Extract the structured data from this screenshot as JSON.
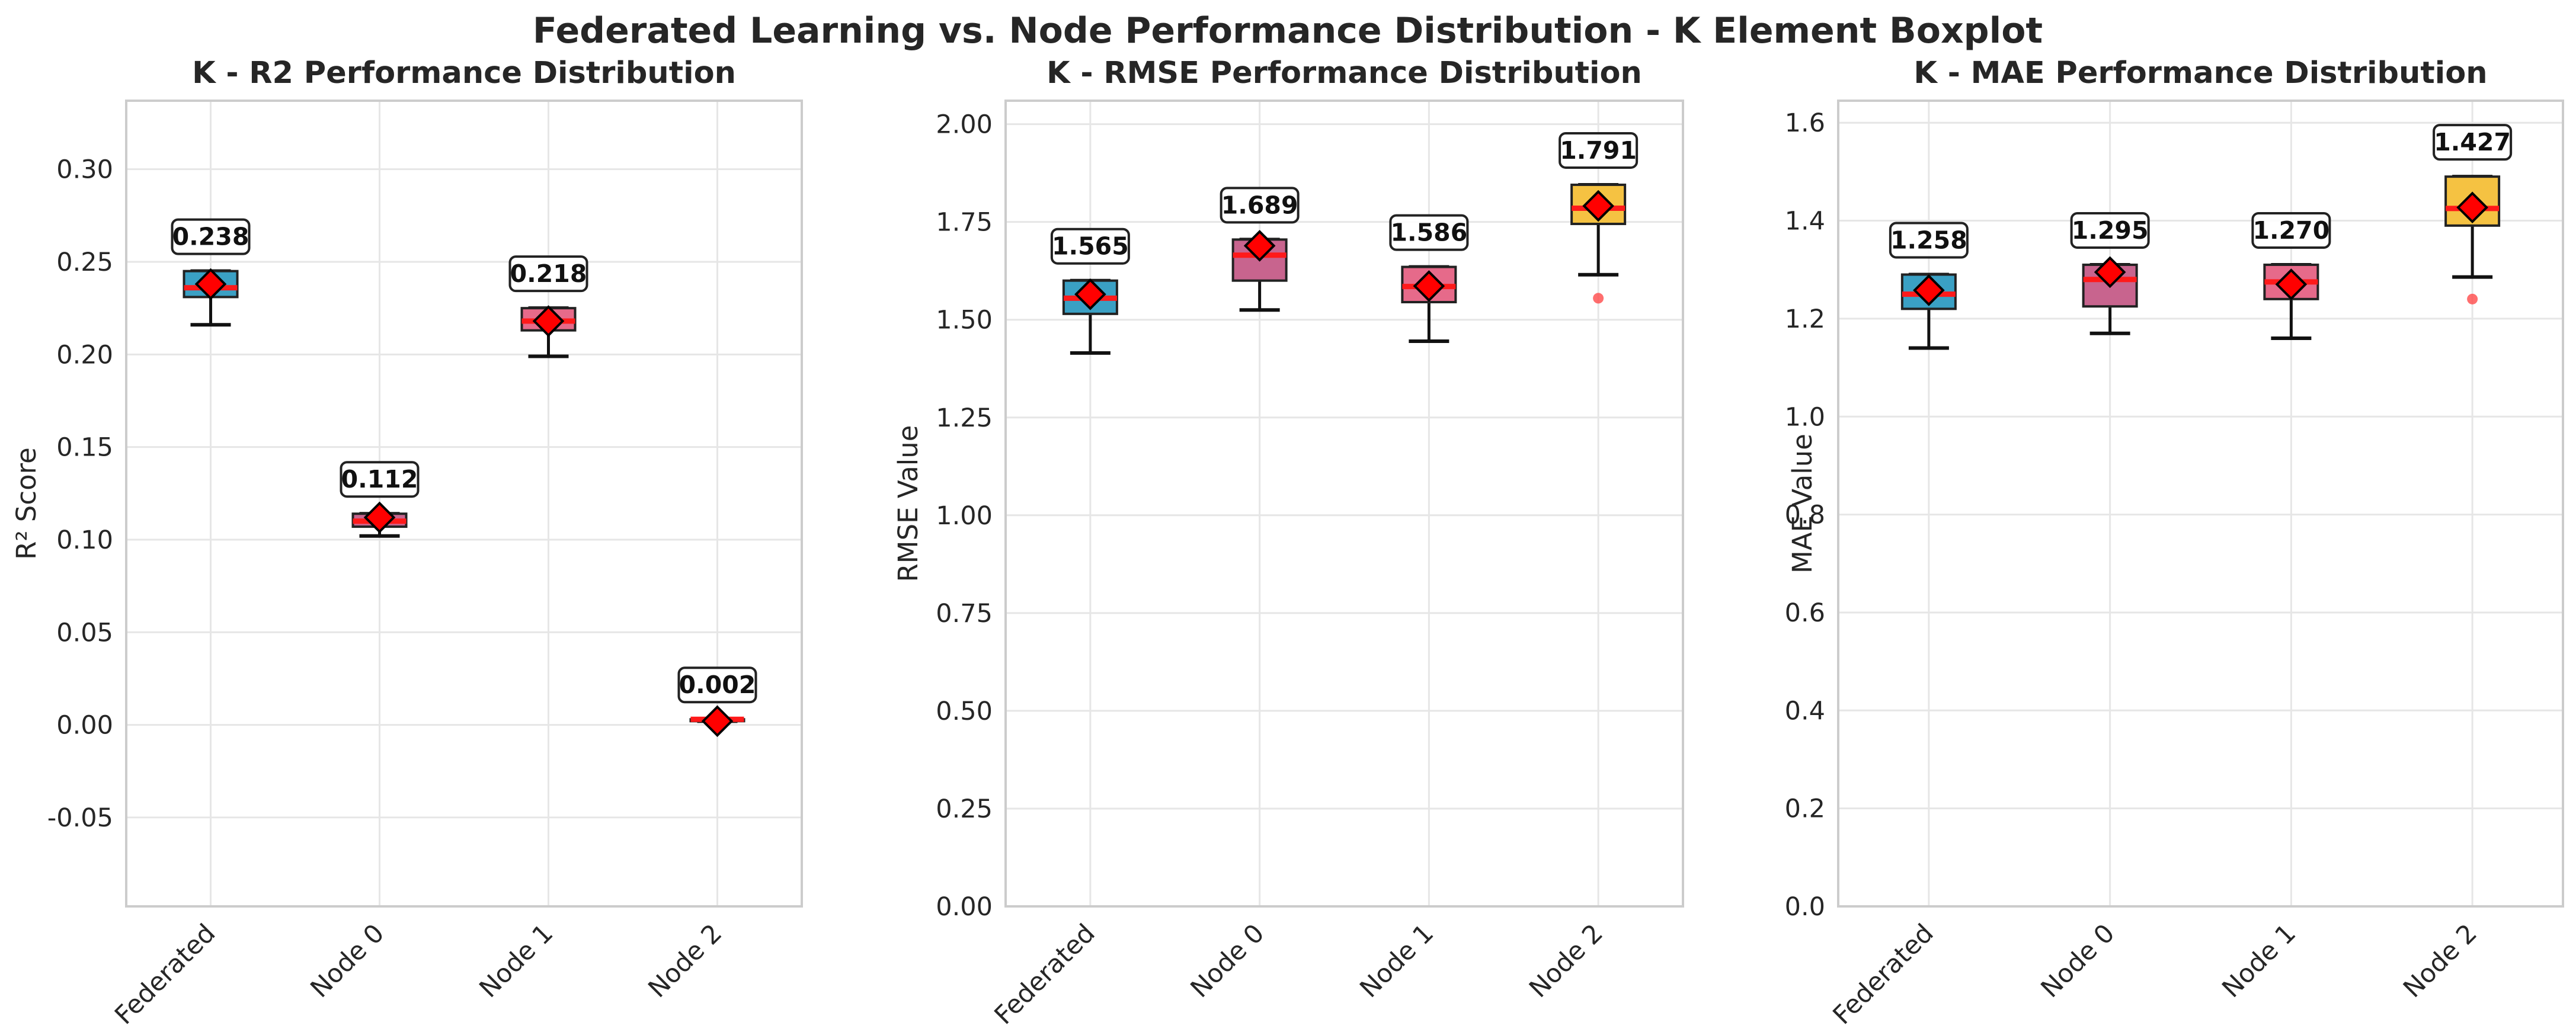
{
  "figure": {
    "title": "Federated Learning vs. Node Performance Distribution - K Element Boxplot"
  },
  "colors": {
    "federated": "#3aa0c4",
    "node0": "#c8648e",
    "node1": "#e66a8a",
    "node2": "#f5c242",
    "median": "#ff1a1a",
    "mean_marker": "#ff0000",
    "outlier": "#ff4a4a",
    "grid": "#e6e6e6",
    "axes": "#cccccc"
  },
  "chart_data": [
    {
      "type": "boxplot",
      "title": "K - R2 Performance Distribution",
      "xlabel": "",
      "ylabel": "R² Score",
      "ylim": [
        -0.098,
        0.337
      ],
      "yticks": [
        -0.05,
        0.0,
        0.05,
        0.1,
        0.15,
        0.2,
        0.25,
        0.3
      ],
      "ytick_labels": [
        "-0.05",
        "0.00",
        "0.05",
        "0.10",
        "0.15",
        "0.20",
        "0.25",
        "0.30"
      ],
      "categories": [
        "Federated",
        "Node 0",
        "Node 1",
        "Node 2"
      ],
      "boxes": [
        {
          "category": "Federated",
          "whislo": 0.216,
          "q1": 0.231,
          "med": 0.236,
          "q3": 0.245,
          "whishi": 0.245,
          "mean": 0.238,
          "label": "0.238",
          "outliers": []
        },
        {
          "category": "Node 0",
          "whislo": 0.102,
          "q1": 0.107,
          "med": 0.11,
          "q3": 0.114,
          "whishi": 0.114,
          "mean": 0.112,
          "label": "0.112",
          "outliers": []
        },
        {
          "category": "Node 1",
          "whislo": 0.199,
          "q1": 0.213,
          "med": 0.218,
          "q3": 0.225,
          "whishi": 0.225,
          "mean": 0.218,
          "label": "0.218",
          "outliers": []
        },
        {
          "category": "Node 2",
          "whislo": 0.002,
          "q1": 0.002,
          "med": 0.003,
          "q3": 0.003,
          "whishi": 0.003,
          "mean": 0.002,
          "label": "0.002",
          "outliers": []
        }
      ]
    },
    {
      "type": "boxplot",
      "title": "K - RMSE Performance Distribution",
      "xlabel": "",
      "ylabel": "RMSE Value",
      "ylim": [
        0.0,
        2.06
      ],
      "yticks": [
        0.0,
        0.25,
        0.5,
        0.75,
        1.0,
        1.25,
        1.5,
        1.75,
        2.0
      ],
      "ytick_labels": [
        "0.00",
        "0.25",
        "0.50",
        "0.75",
        "1.00",
        "1.25",
        "1.50",
        "1.75",
        "2.00"
      ],
      "categories": [
        "Federated",
        "Node 0",
        "Node 1",
        "Node 2"
      ],
      "boxes": [
        {
          "category": "Federated",
          "whislo": 1.415,
          "q1": 1.515,
          "med": 1.555,
          "q3": 1.6,
          "whishi": 1.6,
          "mean": 1.565,
          "label": "1.565",
          "outliers": []
        },
        {
          "category": "Node 0",
          "whislo": 1.525,
          "q1": 1.6,
          "med": 1.665,
          "q3": 1.705,
          "whishi": 1.705,
          "mean": 1.689,
          "label": "1.689",
          "outliers": []
        },
        {
          "category": "Node 1",
          "whislo": 1.445,
          "q1": 1.545,
          "med": 1.585,
          "q3": 1.635,
          "whishi": 1.635,
          "mean": 1.586,
          "label": "1.586",
          "outliers": []
        },
        {
          "category": "Node 2",
          "whislo": 1.615,
          "q1": 1.745,
          "med": 1.785,
          "q3": 1.845,
          "whishi": 1.845,
          "mean": 1.791,
          "label": "1.791",
          "outliers": [
            1.555
          ]
        }
      ]
    },
    {
      "type": "boxplot",
      "title": "K - MAE Performance Distribution",
      "xlabel": "",
      "ylabel": "MAE Value",
      "ylim": [
        0.0,
        1.645
      ],
      "yticks": [
        0.0,
        0.2,
        0.4,
        0.6,
        0.8,
        1.0,
        1.2,
        1.4,
        1.6
      ],
      "ytick_labels": [
        "0.0",
        "0.2",
        "0.4",
        "0.6",
        "0.8",
        "1.0",
        "1.2",
        "1.4",
        "1.6"
      ],
      "categories": [
        "Federated",
        "Node 0",
        "Node 1",
        "Node 2"
      ],
      "boxes": [
        {
          "category": "Federated",
          "whislo": 1.14,
          "q1": 1.22,
          "med": 1.25,
          "q3": 1.29,
          "whishi": 1.29,
          "mean": 1.258,
          "label": "1.258",
          "outliers": []
        },
        {
          "category": "Node 0",
          "whislo": 1.17,
          "q1": 1.225,
          "med": 1.28,
          "q3": 1.31,
          "whishi": 1.31,
          "mean": 1.295,
          "label": "1.295",
          "outliers": []
        },
        {
          "category": "Node 1",
          "whislo": 1.16,
          "q1": 1.24,
          "med": 1.275,
          "q3": 1.31,
          "whishi": 1.31,
          "mean": 1.27,
          "label": "1.270",
          "outliers": []
        },
        {
          "category": "Node 2",
          "whislo": 1.285,
          "q1": 1.39,
          "med": 1.425,
          "q3": 1.49,
          "whishi": 1.49,
          "mean": 1.427,
          "label": "1.427",
          "outliers": [
            1.24
          ]
        }
      ]
    }
  ]
}
